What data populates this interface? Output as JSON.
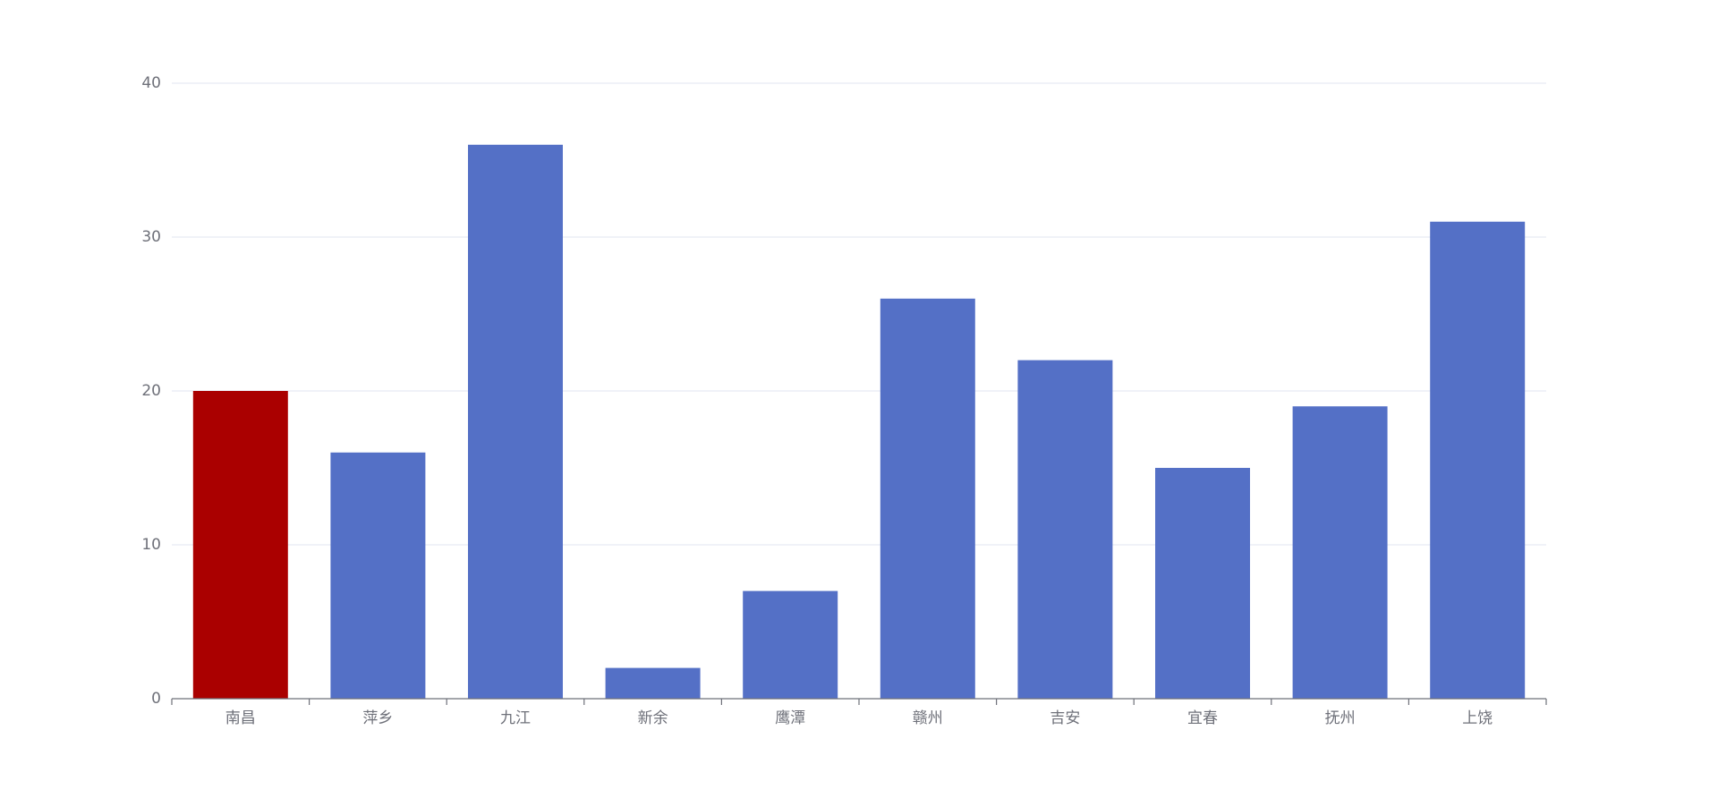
{
  "chart_data": {
    "type": "bar",
    "categories": [
      "南昌",
      "萍乡",
      "九江",
      "新余",
      "鹰潭",
      "赣州",
      "吉安",
      "宜春",
      "抚州",
      "上饶"
    ],
    "values": [
      20,
      16,
      36,
      2,
      7,
      26,
      22,
      15,
      19,
      31
    ],
    "colors": [
      "#aa0000",
      "#5470c6",
      "#5470c6",
      "#5470c6",
      "#5470c6",
      "#5470c6",
      "#5470c6",
      "#5470c6",
      "#5470c6",
      "#5470c6"
    ],
    "ylim": [
      0,
      40
    ],
    "yticks": [
      0,
      10,
      20,
      30,
      40
    ],
    "grid": true
  }
}
